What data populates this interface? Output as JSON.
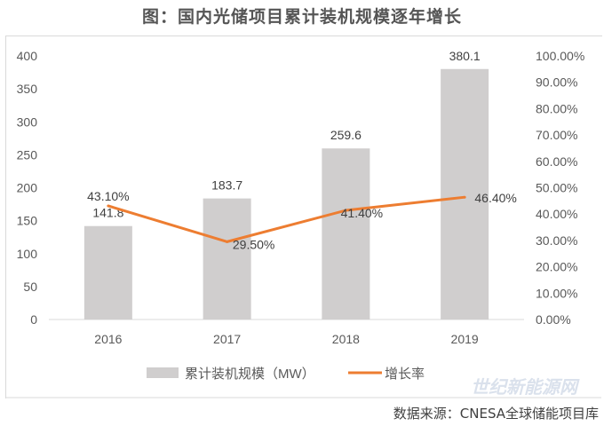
{
  "title": "图：国内光储项目累计装机规模逐年增长",
  "source": "数据来源：CNESA全球储能项目库",
  "watermark": "世纪新能源网",
  "chart_data": {
    "type": "bar+line",
    "categories": [
      "2016",
      "2017",
      "2018",
      "2019"
    ],
    "series": [
      {
        "name": "累计装机规模（MW）",
        "type": "bar",
        "axis": "left",
        "values": [
          141.8,
          183.7,
          259.6,
          380.1
        ],
        "labels": [
          "141.8",
          "183.7",
          "259.6",
          "380.1"
        ],
        "color": "#d0cece"
      },
      {
        "name": "增长率",
        "type": "line",
        "axis": "right",
        "values": [
          43.1,
          29.5,
          41.4,
          46.4
        ],
        "labels": [
          "43.10%",
          "29.50%",
          "41.40%",
          "46.40%"
        ],
        "color": "#ed7d31"
      }
    ],
    "left_axis": {
      "ylim": [
        0,
        400
      ],
      "ticks": [
        "0",
        "50",
        "100",
        "150",
        "200",
        "250",
        "300",
        "350",
        "400"
      ]
    },
    "right_axis": {
      "ylim": [
        0,
        100
      ],
      "ticks": [
        "0.00%",
        "10.00%",
        "20.00%",
        "30.00%",
        "40.00%",
        "50.00%",
        "60.00%",
        "70.00%",
        "80.00%",
        "90.00%",
        "100.00%"
      ]
    },
    "grid": false,
    "legend": "bottom"
  }
}
